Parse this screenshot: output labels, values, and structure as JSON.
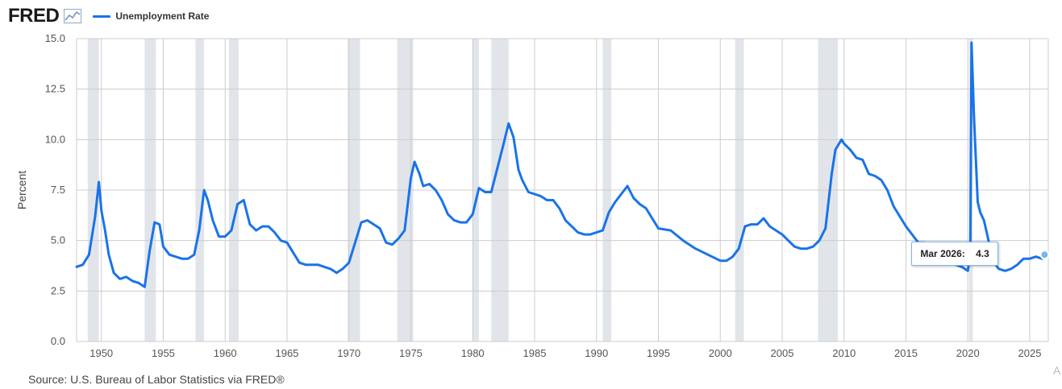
{
  "header": {
    "logo_text": "FRED",
    "logo_icon": "chart-line-icon",
    "legend_label": "Unemployment Rate",
    "series_color": "#1a73e8"
  },
  "tooltip": {
    "date": "Mar 2026:",
    "value": "4.3"
  },
  "source": "Source: U.S. Bureau of Labor Statistics via FRED®",
  "faint_text": "A",
  "colors": {
    "line": "#1a73e8",
    "recession": "#e1e5ea",
    "grid": "#cccccc"
  },
  "chart_data": {
    "type": "line",
    "title": "",
    "xlabel": "",
    "ylabel": "Percent",
    "xlim": [
      1948.0,
      2026.5
    ],
    "ylim": [
      0,
      15
    ],
    "yticks": [
      "0.0",
      "2.5",
      "5.0",
      "7.5",
      "10.0",
      "12.5",
      "15.0"
    ],
    "xticks": [
      "1950",
      "1955",
      "1960",
      "1965",
      "1970",
      "1975",
      "1980",
      "1985",
      "1990",
      "1995",
      "2000",
      "2005",
      "2010",
      "2015",
      "2020",
      "2025"
    ],
    "grid": true,
    "legend": "top-left",
    "recessions": [
      [
        1948.9,
        1949.8
      ],
      [
        1953.5,
        1954.4
      ],
      [
        1957.6,
        1958.3
      ],
      [
        1960.3,
        1961.1
      ],
      [
        1969.9,
        1970.9
      ],
      [
        1973.9,
        1975.2
      ],
      [
        1980.0,
        1980.5
      ],
      [
        1981.5,
        1982.9
      ],
      [
        1990.5,
        1991.2
      ],
      [
        2001.2,
        2001.9
      ],
      [
        2007.9,
        2009.5
      ],
      [
        2020.1,
        2020.4
      ]
    ],
    "series": [
      {
        "name": "Unemployment Rate",
        "x": [
          1948.0,
          1948.5,
          1949.0,
          1949.5,
          1949.8,
          1950.0,
          1950.3,
          1950.6,
          1951.0,
          1951.5,
          1952.0,
          1952.5,
          1953.0,
          1953.5,
          1953.9,
          1954.3,
          1954.7,
          1955.0,
          1955.5,
          1956.0,
          1956.5,
          1957.0,
          1957.5,
          1957.9,
          1958.3,
          1958.6,
          1959.0,
          1959.5,
          1960.0,
          1960.5,
          1961.0,
          1961.5,
          1962.0,
          1962.5,
          1963.0,
          1963.5,
          1964.0,
          1964.5,
          1965.0,
          1965.5,
          1966.0,
          1966.5,
          1967.0,
          1967.5,
          1968.0,
          1968.5,
          1969.0,
          1969.5,
          1970.0,
          1970.5,
          1971.0,
          1971.5,
          1972.0,
          1972.5,
          1973.0,
          1973.5,
          1974.0,
          1974.5,
          1975.0,
          1975.3,
          1975.7,
          1976.0,
          1976.5,
          1977.0,
          1977.5,
          1978.0,
          1978.5,
          1979.0,
          1979.5,
          1980.0,
          1980.5,
          1981.0,
          1981.5,
          1982.0,
          1982.5,
          1982.9,
          1983.3,
          1983.7,
          1984.0,
          1984.5,
          1985.0,
          1985.5,
          1986.0,
          1986.5,
          1987.0,
          1987.5,
          1988.0,
          1988.5,
          1989.0,
          1989.5,
          1990.0,
          1990.5,
          1991.0,
          1991.5,
          1992.0,
          1992.5,
          1993.0,
          1993.5,
          1994.0,
          1994.5,
          1995.0,
          1996.0,
          1997.0,
          1998.0,
          1999.0,
          2000.0,
          2000.5,
          2001.0,
          2001.5,
          2002.0,
          2002.5,
          2003.0,
          2003.5,
          2004.0,
          2004.5,
          2005.0,
          2005.5,
          2006.0,
          2006.5,
          2007.0,
          2007.5,
          2008.0,
          2008.5,
          2009.0,
          2009.3,
          2009.8,
          2010.0,
          2010.5,
          2011.0,
          2011.5,
          2012.0,
          2012.5,
          2013.0,
          2013.5,
          2014.0,
          2014.5,
          2015.0,
          2015.5,
          2016.0,
          2016.5,
          2017.0,
          2017.5,
          2018.0,
          2018.5,
          2019.0,
          2019.5,
          2020.0,
          2020.2,
          2020.3,
          2020.5,
          2020.8,
          2021.0,
          2021.3,
          2021.6,
          2022.0,
          2022.5,
          2023.0,
          2023.5,
          2024.0,
          2024.5,
          2025.0,
          2025.5,
          2026.0,
          2026.2
        ],
        "values": [
          3.7,
          3.8,
          4.3,
          6.2,
          7.9,
          6.5,
          5.5,
          4.3,
          3.4,
          3.1,
          3.2,
          3.0,
          2.9,
          2.7,
          4.5,
          5.9,
          5.8,
          4.7,
          4.3,
          4.2,
          4.1,
          4.1,
          4.3,
          5.5,
          7.5,
          7.0,
          6.0,
          5.2,
          5.2,
          5.5,
          6.8,
          7.0,
          5.8,
          5.5,
          5.7,
          5.7,
          5.4,
          5.0,
          4.9,
          4.4,
          3.9,
          3.8,
          3.8,
          3.8,
          3.7,
          3.6,
          3.4,
          3.6,
          3.9,
          4.9,
          5.9,
          6.0,
          5.8,
          5.6,
          4.9,
          4.8,
          5.1,
          5.5,
          8.1,
          8.9,
          8.3,
          7.7,
          7.8,
          7.5,
          7.0,
          6.3,
          6.0,
          5.9,
          5.9,
          6.3,
          7.6,
          7.4,
          7.4,
          8.6,
          9.8,
          10.8,
          10.1,
          8.5,
          8.0,
          7.4,
          7.3,
          7.2,
          7.0,
          7.0,
          6.6,
          6.0,
          5.7,
          5.4,
          5.3,
          5.3,
          5.4,
          5.5,
          6.4,
          6.9,
          7.3,
          7.7,
          7.1,
          6.8,
          6.6,
          6.1,
          5.6,
          5.5,
          5.0,
          4.6,
          4.3,
          4.0,
          4.0,
          4.2,
          4.6,
          5.7,
          5.8,
          5.8,
          6.1,
          5.7,
          5.5,
          5.3,
          5.0,
          4.7,
          4.6,
          4.6,
          4.7,
          5.0,
          5.6,
          8.3,
          9.5,
          10.0,
          9.8,
          9.5,
          9.1,
          9.0,
          8.3,
          8.2,
          8.0,
          7.5,
          6.7,
          6.2,
          5.7,
          5.3,
          4.9,
          4.9,
          4.7,
          4.3,
          4.1,
          3.9,
          3.8,
          3.7,
          3.5,
          4.4,
          14.8,
          11.1,
          6.9,
          6.4,
          6.0,
          5.2,
          4.0,
          3.6,
          3.5,
          3.6,
          3.8,
          4.1,
          4.1,
          4.2,
          4.1,
          4.3
        ]
      }
    ]
  }
}
